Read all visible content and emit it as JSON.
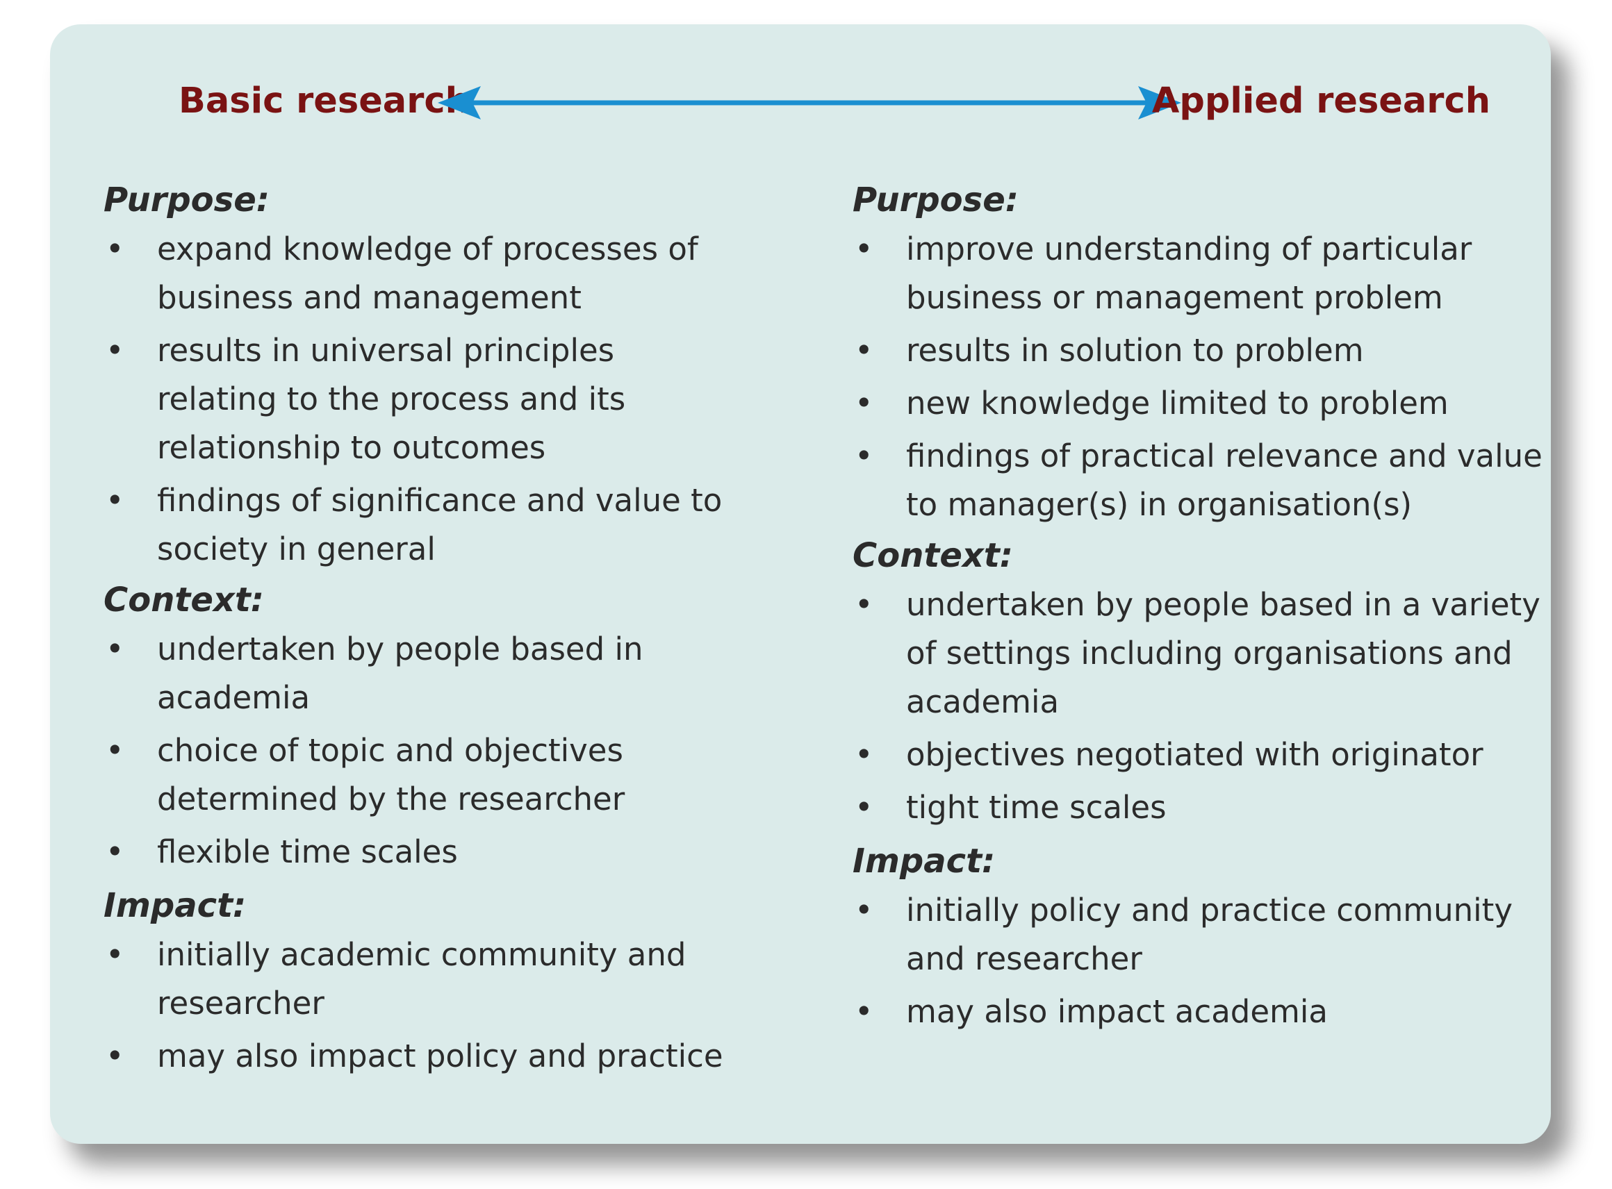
{
  "header": {
    "left": "Basic research",
    "right": "Applied research"
  },
  "colors": {
    "heading": "#7a1313",
    "arrow": "#1a8fd1",
    "panel": "#dbebea",
    "text": "#2b2b2b"
  },
  "icons": {
    "arrow": "double-headed-arrow-icon",
    "bullet": "bullet-icon"
  },
  "left": {
    "sections": [
      {
        "title": "Purpose:",
        "items": [
          "expand knowledge of processes of business and management",
          "results in universal principles relating to the process and its relationship to outcomes",
          "findings of significance and value to society in general"
        ]
      },
      {
        "title": "Context:",
        "items": [
          "undertaken by people based in academia",
          "choice of topic and objectives determined by the researcher",
          "flexible time scales"
        ]
      },
      {
        "title": "Impact:",
        "items": [
          "initially academic community and researcher",
          "may also impact policy and practice"
        ]
      }
    ]
  },
  "right": {
    "sections": [
      {
        "title": "Purpose:",
        "items": [
          "improve understanding of particular business or management problem",
          "results in solution to problem",
          "new knowledge limited to problem",
          "findings of practical relevance and value to manager(s) in organisation(s)"
        ]
      },
      {
        "title": "Context:",
        "items": [
          "undertaken by people based in a variety of settings including organisations and academia",
          "objectives negotiated with originator",
          "tight time scales"
        ]
      },
      {
        "title": "Impact:",
        "items": [
          "initially policy and practice community and researcher",
          "may also impact academia"
        ]
      }
    ]
  }
}
